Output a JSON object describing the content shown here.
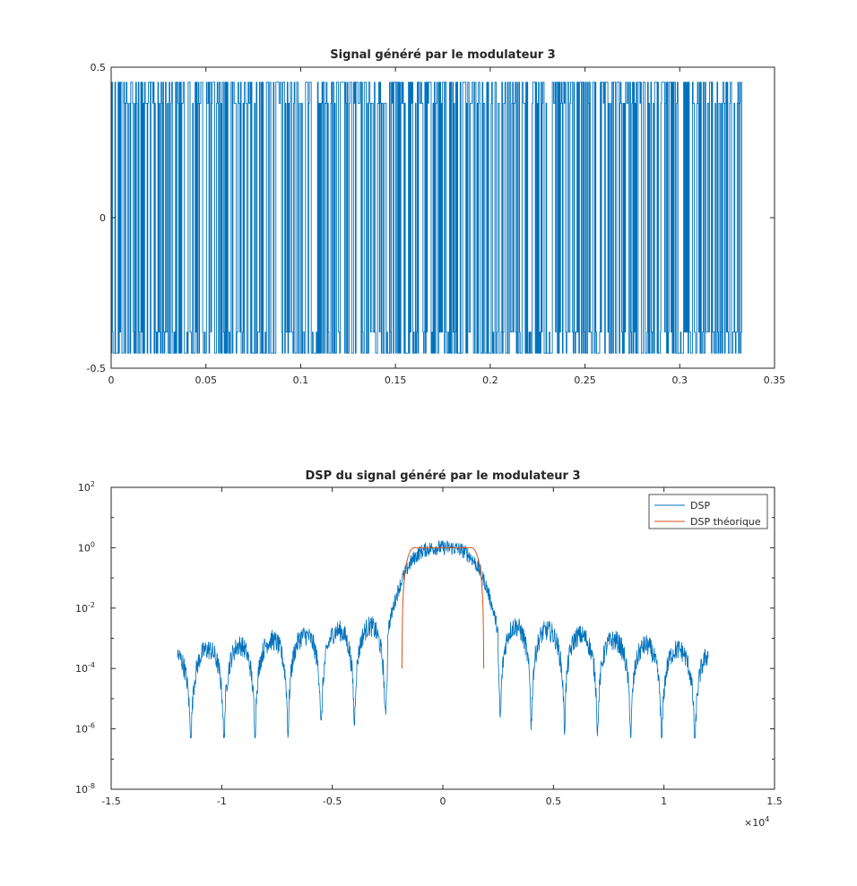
{
  "chart_data": [
    {
      "type": "line",
      "title": "Signal généré par le modulateur 3",
      "xlabel": "",
      "ylabel": "",
      "xlim": [
        0,
        0.35
      ],
      "ylim": [
        -0.5,
        0.5
      ],
      "xticks": [
        0,
        0.05,
        0.1,
        0.15,
        0.2,
        0.25,
        0.3,
        0.35
      ],
      "xtick_labels": [
        "0",
        "0.05",
        "0.1",
        "0.15",
        "0.2",
        "0.25",
        "0.3",
        "0.35"
      ],
      "yticks": [
        -0.5,
        0,
        0.5
      ],
      "ytick_labels": [
        "-0.5",
        "0",
        "0.5"
      ],
      "grid": false,
      "series": [
        {
          "color": "#0072BD",
          "description": "Random multilevel signal switching between about +0.45, +0.38, -0.38 and -0.45",
          "x_range": [
            0,
            0.333
          ],
          "levels": [
            -0.45,
            -0.38,
            0.38,
            0.45
          ]
        }
      ]
    },
    {
      "type": "line",
      "title": "DSP du signal généré par le modulateur 3",
      "xlabel": "",
      "ylabel": "",
      "yscale": "log",
      "xlim": [
        -15000,
        15000
      ],
      "ylim": [
        1e-08,
        100
      ],
      "x_multiplier": "×10",
      "x_multiplier_exponent": "4",
      "xticks": [
        -15000,
        -10000,
        -5000,
        0,
        5000,
        10000,
        15000
      ],
      "xtick_labels": [
        "-1.5",
        "-1",
        "-0.5",
        "0",
        "0.5",
        "1",
        "1.5"
      ],
      "yticks": [
        1e-08,
        1e-06,
        0.0001,
        0.01,
        1,
        100
      ],
      "ytick_labels": [
        {
          "base": "10",
          "exp": "-8"
        },
        {
          "base": "10",
          "exp": "-6"
        },
        {
          "base": "10",
          "exp": "-4"
        },
        {
          "base": "10",
          "exp": "-2"
        },
        {
          "base": "10",
          "exp": "0"
        },
        {
          "base": "10",
          "exp": "2"
        }
      ],
      "grid": false,
      "legend": "top-right",
      "series": [
        {
          "name": "DSP",
          "color": "#0072BD",
          "x_range": [
            -12000,
            12000
          ],
          "main_lobe_peak": 1,
          "main_lobe_halfwidth": 2500,
          "side_lobe_nulls": [
            -11400,
            -9900,
            -8500,
            -7000,
            -5500,
            -4000,
            -2600,
            2600,
            4000,
            5500,
            7000,
            8500,
            9900,
            11400
          ],
          "null_min": 5e-07
        },
        {
          "name": "DSP théorique",
          "color": "#D95319",
          "x_range": [
            -1850,
            1850
          ],
          "peak": 1,
          "floor": 0.0001
        }
      ]
    }
  ]
}
